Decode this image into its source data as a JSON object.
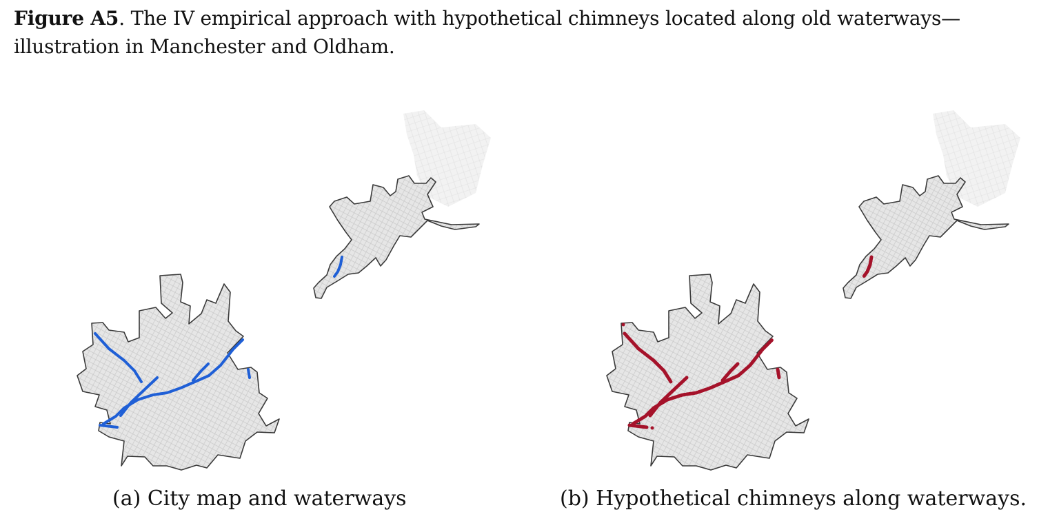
{
  "figure": {
    "label": "Figure A5",
    "label_suffix": ".",
    "caption": " The IV empirical approach with hypothetical chimneys located along old waterways—illustration in Manchester and Oldham."
  },
  "panels": [
    {
      "id": "a",
      "caption": "(a) City map and waterways",
      "overlay_color": "#1f5fd6"
    },
    {
      "id": "b",
      "caption": "(b) Hypothetical chimneys along waterways.",
      "overlay_color": "#a5122a"
    }
  ],
  "colors": {
    "city_fill": "#e4e4e4",
    "city_outline": "#3a3a3a"
  }
}
